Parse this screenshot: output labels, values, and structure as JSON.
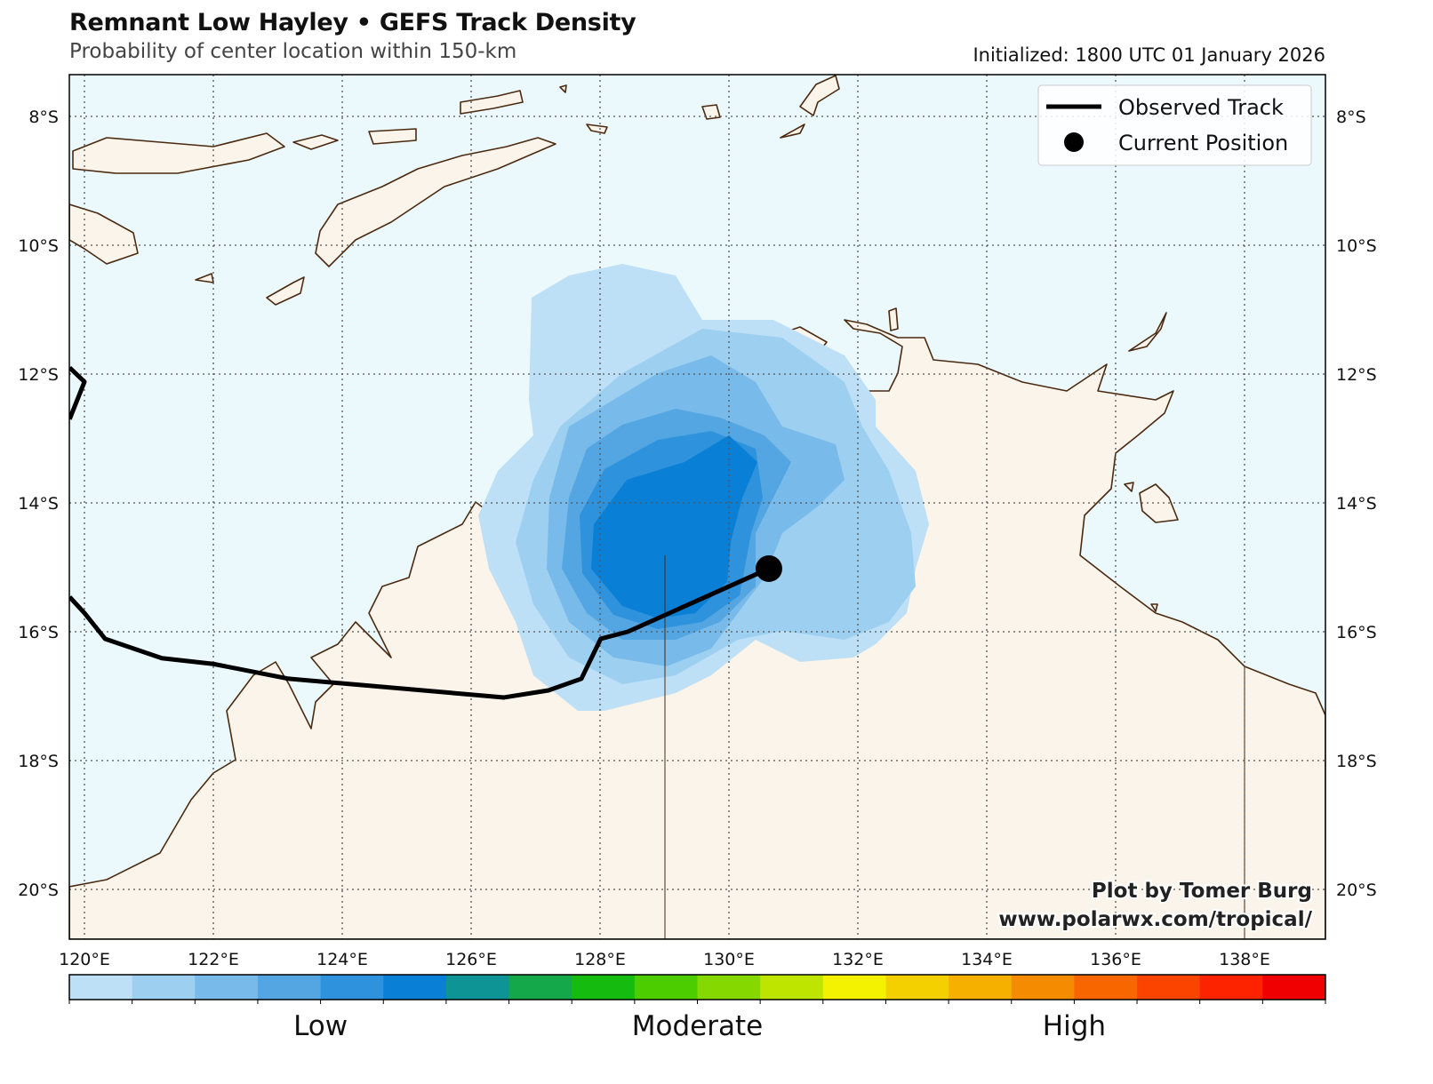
{
  "header": {
    "title": "Remnant Low Hayley • GEFS Track Density",
    "subtitle": "Probability of center location within 150-km",
    "initialized": "Initialized: 1800 UTC 01 January 2026"
  },
  "map": {
    "extent_lon": [
      119.77,
      139.26
    ],
    "extent_lat": [
      -20.77,
      -7.35
    ],
    "ocean_color": "#ebf9fd",
    "land_color": "#faf4ea",
    "coast_color": "#4a2a10",
    "lon_ticks": [
      {
        "value": 120,
        "label": "120°E"
      },
      {
        "value": 122,
        "label": "122°E"
      },
      {
        "value": 124,
        "label": "124°E"
      },
      {
        "value": 126,
        "label": "126°E"
      },
      {
        "value": 128,
        "label": "128°E"
      },
      {
        "value": 130,
        "label": "130°E"
      },
      {
        "value": 132,
        "label": "132°E"
      },
      {
        "value": 134,
        "label": "134°E"
      },
      {
        "value": 136,
        "label": "136°E"
      },
      {
        "value": 138,
        "label": "138°E"
      }
    ],
    "lat_ticks": [
      {
        "value": -8,
        "label": "8°S"
      },
      {
        "value": -10,
        "label": "10°S"
      },
      {
        "value": -12,
        "label": "12°S"
      },
      {
        "value": -14,
        "label": "14°S"
      },
      {
        "value": -16,
        "label": "16°S"
      },
      {
        "value": -18,
        "label": "18°S"
      },
      {
        "value": -20,
        "label": "20°S"
      }
    ]
  },
  "observed_track": {
    "segments": [
      [
        [
          119.77,
          -11.9
        ],
        [
          120.0,
          -12.12
        ],
        [
          119.77,
          -12.7
        ]
      ],
      [
        [
          119.77,
          -15.46
        ],
        [
          120.0,
          -15.71
        ],
        [
          120.32,
          -16.11
        ],
        [
          121.2,
          -16.41
        ],
        [
          122.0,
          -16.5
        ],
        [
          123.17,
          -16.73
        ],
        [
          126.51,
          -17.02
        ],
        [
          127.2,
          -16.91
        ],
        [
          127.71,
          -16.73
        ],
        [
          128.01,
          -16.11
        ],
        [
          128.43,
          -16.0
        ],
        [
          130.62,
          -15.02
        ]
      ]
    ],
    "current_position": [
      130.62,
      -15.02
    ]
  },
  "legend": {
    "observed_track_label": "Observed Track",
    "current_position_label": "Current Position"
  },
  "watermark": {
    "line1": "Plot by Tomer Burg",
    "line2": "www.polarwx.com/tropical/"
  },
  "colorbar": {
    "colors": [
      "#bde0f7",
      "#9dcff0",
      "#78bbea",
      "#54a6e2",
      "#2e92dc",
      "#0a7fd6",
      "#0e9494",
      "#14a84a",
      "#16bb10",
      "#4ccd00",
      "#86d900",
      "#bde500",
      "#f4f200",
      "#f5d000",
      "#f5b000",
      "#f58b00",
      "#f86600",
      "#fb4400",
      "#fd2200",
      "#f00000"
    ],
    "labels": [
      {
        "text": "Low",
        "position": 0.2
      },
      {
        "text": "Moderate",
        "position": 0.5
      },
      {
        "text": "High",
        "position": 0.8
      }
    ]
  }
}
